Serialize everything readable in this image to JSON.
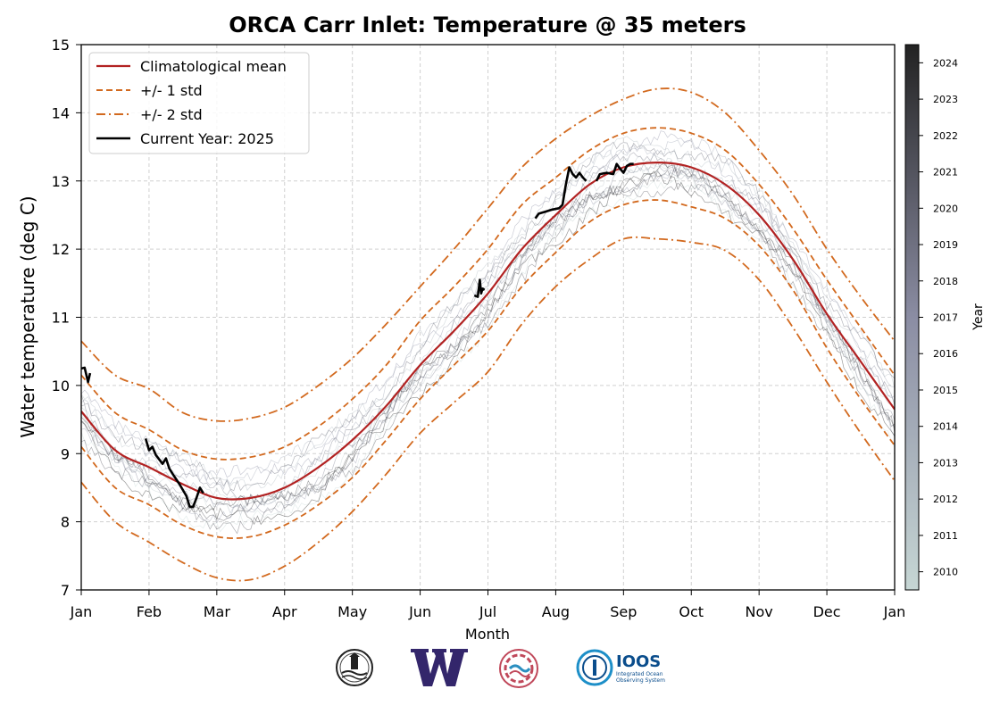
{
  "chart_data": {
    "type": "line",
    "title": "ORCA Carr Inlet: Temperature @ 35 meters",
    "xlabel": "Month",
    "ylabel": "Water temperature (deg C)",
    "x_tick_labels": [
      "Jan",
      "Feb",
      "Mar",
      "Apr",
      "May",
      "Jun",
      "Jul",
      "Aug",
      "Sep",
      "Oct",
      "Nov",
      "Dec",
      "Jan"
    ],
    "xlim": [
      0,
      12
    ],
    "ylim": [
      7,
      15
    ],
    "y_ticks": [
      7,
      8,
      9,
      10,
      11,
      12,
      13,
      14,
      15
    ],
    "grid": true,
    "legend_position": "top-left",
    "legend": [
      {
        "label": "Climatological mean",
        "style": "solid",
        "color": "#b22222"
      },
      {
        "label": "+/- 1 std",
        "style": "dashed",
        "color": "#d2691e"
      },
      {
        "label": "+/- 2 std",
        "style": "dashdot",
        "color": "#d2691e"
      },
      {
        "label": "Current Year: 2025",
        "style": "solid",
        "color": "#000000"
      }
    ],
    "x_month": [
      0,
      0.5,
      1,
      1.5,
      2,
      2.5,
      3,
      3.5,
      4,
      4.5,
      5,
      5.5,
      6,
      6.5,
      7,
      7.5,
      8,
      8.5,
      9,
      9.5,
      10,
      10.5,
      11,
      11.5,
      12
    ],
    "series": [
      {
        "name": "Climatological mean",
        "color": "#b22222",
        "dash": "",
        "values": [
          9.62,
          9.05,
          8.8,
          8.55,
          8.35,
          8.35,
          8.5,
          8.8,
          9.2,
          9.7,
          10.3,
          10.8,
          11.35,
          12.0,
          12.5,
          12.95,
          13.2,
          13.27,
          13.2,
          12.95,
          12.5,
          11.85,
          11.05,
          10.35,
          9.65
        ]
      },
      {
        "name": "+/- 1 std",
        "color": "#d2691e",
        "dash": "7,4",
        "values": [
          10.15,
          9.6,
          9.35,
          9.05,
          8.92,
          8.95,
          9.1,
          9.4,
          9.8,
          10.3,
          10.95,
          11.45,
          12.0,
          12.65,
          13.05,
          13.45,
          13.7,
          13.78,
          13.7,
          13.45,
          12.95,
          12.3,
          11.55,
          10.85,
          10.15
        ]
      },
      {
        "name": "+/- 1 std",
        "color": "#d2691e",
        "dash": "7,4",
        "values": [
          9.1,
          8.5,
          8.25,
          7.95,
          7.78,
          7.78,
          7.95,
          8.25,
          8.65,
          9.2,
          9.8,
          10.3,
          10.8,
          11.45,
          11.95,
          12.4,
          12.65,
          12.72,
          12.62,
          12.45,
          12.05,
          11.4,
          10.55,
          9.8,
          9.12
        ]
      },
      {
        "name": "+/- 2 std",
        "color": "#d2691e",
        "dash": "10,4,2,4",
        "values": [
          10.65,
          10.15,
          9.95,
          9.6,
          9.48,
          9.52,
          9.68,
          10.0,
          10.4,
          10.9,
          11.45,
          12.0,
          12.6,
          13.2,
          13.62,
          13.95,
          14.2,
          14.35,
          14.3,
          14.0,
          13.45,
          12.8,
          12.0,
          11.3,
          10.65
        ]
      },
      {
        "name": "+/- 2 std",
        "color": "#d2691e",
        "dash": "10,4,2,4",
        "values": [
          8.58,
          8.0,
          7.7,
          7.4,
          7.18,
          7.15,
          7.35,
          7.7,
          8.15,
          8.7,
          9.3,
          9.75,
          10.2,
          10.9,
          11.45,
          11.85,
          12.15,
          12.15,
          12.1,
          11.98,
          11.55,
          10.85,
          10.05,
          9.3,
          8.6
        ]
      }
    ],
    "current_year": {
      "name": "Current Year: 2025",
      "color": "#000000",
      "segments": [
        {
          "x": [
            0,
            0.05,
            0.1,
            0.13
          ],
          "y": [
            10.25,
            10.26,
            10.05,
            10.18
          ]
        },
        {
          "x": [
            0.95,
            1.0,
            1.05,
            1.1,
            1.2,
            1.25,
            1.3,
            1.35,
            1.45,
            1.55,
            1.6,
            1.65,
            1.7,
            1.75,
            1.8
          ],
          "y": [
            9.22,
            9.05,
            9.1,
            8.98,
            8.85,
            8.93,
            8.78,
            8.7,
            8.55,
            8.38,
            8.22,
            8.22,
            8.35,
            8.5,
            8.42
          ]
        },
        {
          "x": [
            5.8,
            5.85,
            5.88,
            5.9,
            5.92,
            5.95
          ],
          "y": [
            11.32,
            11.3,
            11.55,
            11.35,
            11.42,
            11.4
          ]
        },
        {
          "x": [
            6.7,
            6.75,
            6.85,
            6.95,
            7.05,
            7.1,
            7.15,
            7.2,
            7.25,
            7.3,
            7.35,
            7.4,
            7.45
          ],
          "y": [
            12.45,
            12.52,
            12.55,
            12.58,
            12.6,
            12.65,
            12.95,
            13.2,
            13.1,
            13.05,
            13.12,
            13.05,
            13.0
          ]
        },
        {
          "x": [
            7.6,
            7.65,
            7.75,
            7.85,
            7.9,
            7.95,
            8.0,
            8.05,
            8.1,
            8.15
          ],
          "y": [
            13.0,
            13.1,
            13.12,
            13.1,
            13.25,
            13.18,
            13.12,
            13.22,
            13.25,
            13.25
          ]
        }
      ]
    },
    "colorbar": {
      "label": "Year",
      "years": [
        "2010",
        "2011",
        "2012",
        "2013",
        "2014",
        "2015",
        "2016",
        "2017",
        "2018",
        "2019",
        "2020",
        "2021",
        "2022",
        "2023",
        "2024"
      ],
      "color_start": "#c6d6d4",
      "color_mid": "#8b8da3",
      "color_end": "#222222"
    }
  },
  "logos": [
    {
      "icon": "noaa-logo-icon"
    },
    {
      "icon": "uw-w-logo-icon",
      "color": "#33266b"
    },
    {
      "icon": "nanoos-logo-icon",
      "color": "#c0485a"
    },
    {
      "icon": "ioos-logo-icon",
      "color": "#0a4d8c",
      "text": "IOOS",
      "subtext": [
        "Integrated Ocean",
        "Observing System"
      ]
    }
  ]
}
